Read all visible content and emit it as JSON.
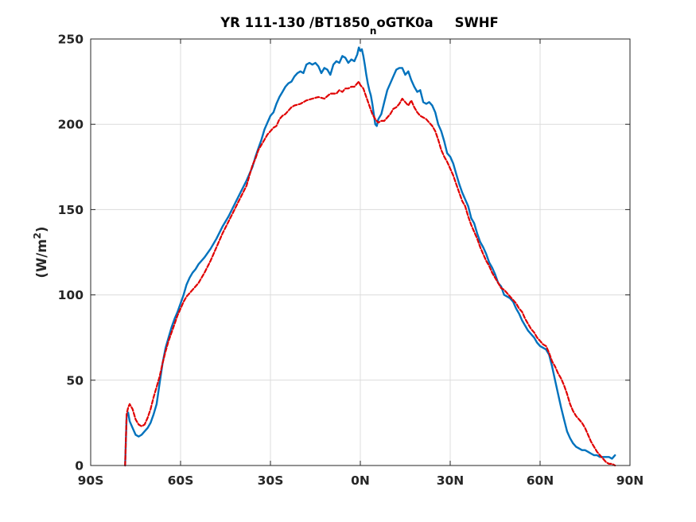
{
  "chart_data": {
    "type": "line",
    "title": {
      "main": "YR 111-130 /BT1850",
      "sub": "n",
      "suffix": "oGTK0a",
      "variable": "SWHF"
    },
    "xlabel": "",
    "ylabel": {
      "text": "(W/m",
      "sup": "2",
      "close": ")"
    },
    "xlim": [
      -90,
      90
    ],
    "ylim": [
      0,
      250
    ],
    "grid": true,
    "x_ticks": [
      -90,
      -60,
      -30,
      0,
      30,
      60,
      90
    ],
    "x_tick_labels": [
      "90S",
      "60S",
      "30S",
      "0N",
      "30N",
      "60N",
      "90N"
    ],
    "y_ticks": [
      0,
      50,
      100,
      150,
      200,
      250
    ],
    "y_tick_labels": [
      "0",
      "50",
      "100",
      "150",
      "200",
      "250"
    ],
    "series": [
      {
        "color": "#0072BD",
        "style": "solid",
        "points": [
          [
            -78.5,
            0
          ],
          [
            -78,
            29
          ],
          [
            -77.5,
            31
          ],
          [
            -77,
            26
          ],
          [
            -76,
            22
          ],
          [
            -75,
            18
          ],
          [
            -74,
            17
          ],
          [
            -73,
            18
          ],
          [
            -72,
            20
          ],
          [
            -71,
            22
          ],
          [
            -70,
            25
          ],
          [
            -69,
            30
          ],
          [
            -68,
            36
          ],
          [
            -67,
            48
          ],
          [
            -66,
            60
          ],
          [
            -65,
            69
          ],
          [
            -64,
            75
          ],
          [
            -63,
            81
          ],
          [
            -62,
            86
          ],
          [
            -61,
            90
          ],
          [
            -60,
            95
          ],
          [
            -59,
            100
          ],
          [
            -58,
            106
          ],
          [
            -57,
            110
          ],
          [
            -56,
            113
          ],
          [
            -55,
            115
          ],
          [
            -54,
            118
          ],
          [
            -52,
            122
          ],
          [
            -50,
            127
          ],
          [
            -48,
            133
          ],
          [
            -46,
            140
          ],
          [
            -44,
            146
          ],
          [
            -42,
            153
          ],
          [
            -40,
            160
          ],
          [
            -38,
            167
          ],
          [
            -36,
            175
          ],
          [
            -35,
            181
          ],
          [
            -34,
            186
          ],
          [
            -33,
            191
          ],
          [
            -32,
            197
          ],
          [
            -31,
            201
          ],
          [
            -30,
            205
          ],
          [
            -29,
            207
          ],
          [
            -28,
            212
          ],
          [
            -27,
            216
          ],
          [
            -26,
            219
          ],
          [
            -25,
            222
          ],
          [
            -24,
            224
          ],
          [
            -23,
            225
          ],
          [
            -22,
            228
          ],
          [
            -21,
            230
          ],
          [
            -20,
            231
          ],
          [
            -19,
            230
          ],
          [
            -18,
            235
          ],
          [
            -17,
            236
          ],
          [
            -16,
            235
          ],
          [
            -15,
            236
          ],
          [
            -14,
            234
          ],
          [
            -13,
            230
          ],
          [
            -12,
            233
          ],
          [
            -11,
            232
          ],
          [
            -10,
            229
          ],
          [
            -9,
            235
          ],
          [
            -8,
            237
          ],
          [
            -7,
            236
          ],
          [
            -6,
            240
          ],
          [
            -5,
            239
          ],
          [
            -4,
            236
          ],
          [
            -3,
            238
          ],
          [
            -2,
            237
          ],
          [
            -1,
            241
          ],
          [
            -0.5,
            245
          ],
          [
            0,
            243
          ],
          [
            0.5,
            244
          ],
          [
            1,
            240
          ],
          [
            1.5,
            235
          ],
          [
            2,
            229
          ],
          [
            2.5,
            224
          ],
          [
            3,
            220
          ],
          [
            3.5,
            217
          ],
          [
            4,
            212
          ],
          [
            4.5,
            206
          ],
          [
            5,
            200
          ],
          [
            5.5,
            199
          ],
          [
            6,
            203
          ],
          [
            7,
            206
          ],
          [
            8,
            213
          ],
          [
            9,
            220
          ],
          [
            10,
            224
          ],
          [
            11,
            228
          ],
          [
            12,
            232
          ],
          [
            13,
            233
          ],
          [
            14,
            233
          ],
          [
            15,
            229
          ],
          [
            16,
            231
          ],
          [
            17,
            226
          ],
          [
            18,
            222
          ],
          [
            19,
            219
          ],
          [
            20,
            220
          ],
          [
            21,
            213
          ],
          [
            22,
            212
          ],
          [
            23,
            213
          ],
          [
            24,
            211
          ],
          [
            25,
            207
          ],
          [
            26,
            200
          ],
          [
            27,
            196
          ],
          [
            28,
            190
          ],
          [
            29,
            183
          ],
          [
            30,
            181
          ],
          [
            31,
            177
          ],
          [
            32,
            171
          ],
          [
            33,
            165
          ],
          [
            34,
            160
          ],
          [
            35,
            156
          ],
          [
            36,
            152
          ],
          [
            37,
            145
          ],
          [
            38,
            142
          ],
          [
            39,
            136
          ],
          [
            40,
            131
          ],
          [
            41,
            128
          ],
          [
            42,
            124
          ],
          [
            43,
            119
          ],
          [
            44,
            116
          ],
          [
            45,
            112
          ],
          [
            46,
            107
          ],
          [
            47,
            105
          ],
          [
            48,
            100
          ],
          [
            49,
            99
          ],
          [
            50,
            98
          ],
          [
            51,
            96
          ],
          [
            52,
            92
          ],
          [
            53,
            89
          ],
          [
            54,
            85
          ],
          [
            55,
            82
          ],
          [
            56,
            79
          ],
          [
            57,
            77
          ],
          [
            58,
            75
          ],
          [
            59,
            72
          ],
          [
            60,
            70
          ],
          [
            61,
            69
          ],
          [
            62,
            68
          ],
          [
            63,
            65
          ],
          [
            64,
            58
          ],
          [
            65,
            50
          ],
          [
            66,
            42
          ],
          [
            67,
            34
          ],
          [
            68,
            27
          ],
          [
            69,
            20
          ],
          [
            70,
            16
          ],
          [
            71,
            13
          ],
          [
            72,
            11
          ],
          [
            73,
            10
          ],
          [
            74,
            9
          ],
          [
            75,
            9
          ],
          [
            76,
            8
          ],
          [
            77,
            7
          ],
          [
            78,
            6
          ],
          [
            79,
            6
          ],
          [
            80,
            5
          ],
          [
            81,
            5
          ],
          [
            82,
            5
          ],
          [
            83,
            5
          ],
          [
            84,
            4
          ],
          [
            85,
            6
          ]
        ]
      },
      {
        "color": "#E00000",
        "style": "dashed",
        "points": [
          [
            -78.5,
            0
          ],
          [
            -78,
            30
          ],
          [
            -77.5,
            34
          ],
          [
            -77,
            36
          ],
          [
            -76,
            33
          ],
          [
            -75,
            27
          ],
          [
            -74,
            24
          ],
          [
            -73,
            23
          ],
          [
            -72,
            24
          ],
          [
            -71,
            28
          ],
          [
            -70,
            33
          ],
          [
            -69,
            40
          ],
          [
            -68,
            46
          ],
          [
            -67,
            52
          ],
          [
            -66,
            60
          ],
          [
            -65,
            67
          ],
          [
            -64,
            73
          ],
          [
            -63,
            78
          ],
          [
            -62,
            83
          ],
          [
            -61,
            88
          ],
          [
            -60,
            92
          ],
          [
            -59,
            96
          ],
          [
            -58,
            99
          ],
          [
            -56,
            103
          ],
          [
            -54,
            107
          ],
          [
            -52,
            113
          ],
          [
            -50,
            120
          ],
          [
            -48,
            128
          ],
          [
            -46,
            136
          ],
          [
            -44,
            143
          ],
          [
            -42,
            150
          ],
          [
            -40,
            157
          ],
          [
            -38,
            164
          ],
          [
            -37,
            170
          ],
          [
            -36,
            176
          ],
          [
            -35,
            180
          ],
          [
            -34,
            185
          ],
          [
            -33,
            188
          ],
          [
            -32,
            191
          ],
          [
            -31,
            194
          ],
          [
            -30,
            196
          ],
          [
            -29,
            198
          ],
          [
            -28,
            199
          ],
          [
            -27,
            203
          ],
          [
            -26,
            205
          ],
          [
            -25,
            206
          ],
          [
            -24,
            208
          ],
          [
            -23,
            210
          ],
          [
            -22,
            211
          ],
          [
            -20,
            212
          ],
          [
            -18,
            214
          ],
          [
            -16,
            215
          ],
          [
            -14,
            216
          ],
          [
            -12,
            215
          ],
          [
            -10,
            218
          ],
          [
            -8,
            218
          ],
          [
            -7,
            220
          ],
          [
            -6,
            219
          ],
          [
            -5,
            221
          ],
          [
            -4,
            221
          ],
          [
            -3,
            222
          ],
          [
            -2,
            222
          ],
          [
            -1,
            224
          ],
          [
            -0.5,
            225
          ],
          [
            0,
            223
          ],
          [
            1,
            221
          ],
          [
            2,
            216
          ],
          [
            3,
            211
          ],
          [
            4,
            206
          ],
          [
            5,
            203
          ],
          [
            6,
            201
          ],
          [
            7,
            202
          ],
          [
            8,
            202
          ],
          [
            9,
            204
          ],
          [
            10,
            206
          ],
          [
            11,
            209
          ],
          [
            12,
            210
          ],
          [
            13,
            212
          ],
          [
            14,
            215
          ],
          [
            15,
            213
          ],
          [
            16,
            211
          ],
          [
            17,
            214
          ],
          [
            18,
            210
          ],
          [
            19,
            207
          ],
          [
            20,
            205
          ],
          [
            21,
            204
          ],
          [
            22,
            203
          ],
          [
            23,
            201
          ],
          [
            24,
            199
          ],
          [
            25,
            196
          ],
          [
            26,
            191
          ],
          [
            27,
            185
          ],
          [
            28,
            181
          ],
          [
            29,
            178
          ],
          [
            30,
            174
          ],
          [
            31,
            170
          ],
          [
            32,
            165
          ],
          [
            33,
            160
          ],
          [
            34,
            155
          ],
          [
            35,
            152
          ],
          [
            36,
            146
          ],
          [
            37,
            141
          ],
          [
            38,
            137
          ],
          [
            39,
            133
          ],
          [
            40,
            128
          ],
          [
            41,
            124
          ],
          [
            42,
            120
          ],
          [
            43,
            117
          ],
          [
            44,
            113
          ],
          [
            45,
            110
          ],
          [
            46,
            107
          ],
          [
            47,
            104
          ],
          [
            48,
            103
          ],
          [
            49,
            101
          ],
          [
            50,
            99
          ],
          [
            51,
            97
          ],
          [
            52,
            95
          ],
          [
            53,
            92
          ],
          [
            54,
            90
          ],
          [
            55,
            86
          ],
          [
            56,
            83
          ],
          [
            57,
            80
          ],
          [
            58,
            78
          ],
          [
            59,
            75
          ],
          [
            60,
            73
          ],
          [
            61,
            71
          ],
          [
            62,
            70
          ],
          [
            63,
            66
          ],
          [
            64,
            61
          ],
          [
            65,
            58
          ],
          [
            66,
            54
          ],
          [
            67,
            51
          ],
          [
            68,
            47
          ],
          [
            69,
            42
          ],
          [
            70,
            36
          ],
          [
            71,
            32
          ],
          [
            72,
            29
          ],
          [
            73,
            27
          ],
          [
            74,
            25
          ],
          [
            75,
            22
          ],
          [
            76,
            18
          ],
          [
            77,
            14
          ],
          [
            78,
            11
          ],
          [
            79,
            8
          ],
          [
            80,
            6
          ],
          [
            81,
            4
          ],
          [
            82,
            2
          ],
          [
            83,
            1
          ],
          [
            84,
            1
          ],
          [
            85,
            0
          ]
        ]
      }
    ]
  }
}
